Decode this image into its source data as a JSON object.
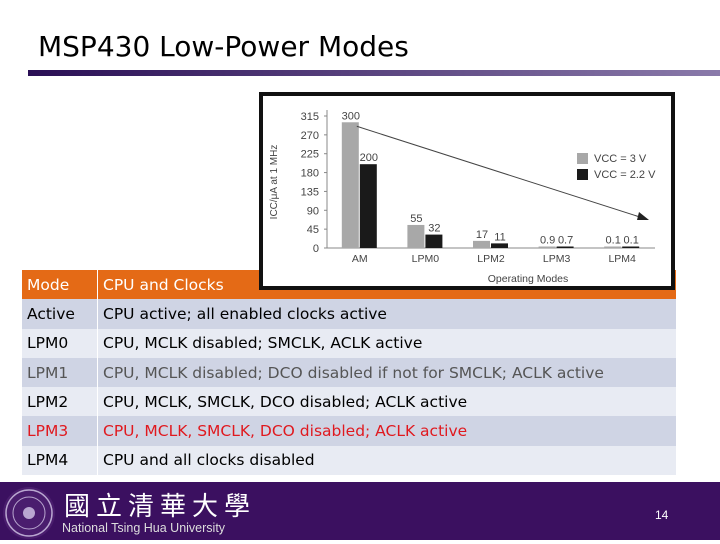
{
  "slide": {
    "title": "MSP430 Low-Power Modes",
    "page_number": "14",
    "university_cjk": "國立清華大學",
    "university_en": "National Tsing Hua University"
  },
  "table": {
    "header": {
      "mode": "Mode",
      "desc": "CPU and Clocks"
    },
    "rows": [
      {
        "mode": "Active",
        "desc": "CPU active; all enabled clocks active"
      },
      {
        "mode": "LPM0",
        "desc": "CPU, MCLK disabled; SMCLK, ACLK active"
      },
      {
        "mode": "LPM1",
        "desc": "CPU, MCLK disabled; DCO disabled if not for SMCLK; ACLK active"
      },
      {
        "mode": "LPM2",
        "desc": "CPU, MCLK, SMCLK, DCO disabled; ACLK active"
      },
      {
        "mode": "LPM3",
        "desc": "CPU, MCLK, SMCLK, DCO disabled; ACLK active"
      },
      {
        "mode": "LPM4",
        "desc": "CPU and all clocks disabled"
      }
    ],
    "colors": {
      "header": "#e46a16",
      "highlight": "#e0191f"
    }
  },
  "chart_data": {
    "type": "bar",
    "categories": [
      "AM",
      "LPM0",
      "LPM2",
      "LPM3",
      "LPM4"
    ],
    "series": [
      {
        "name": "VCC = 3 V",
        "values": [
          300,
          55,
          17,
          0.9,
          0.1
        ],
        "color": "#a8a8a8"
      },
      {
        "name": "VCC = 2.2 V",
        "values": [
          200,
          32,
          11,
          0.7,
          0.1
        ],
        "color": "#1a1a1a"
      }
    ],
    "ylabel": "ICC/μA at 1 MHz",
    "xlabel": "Operating Modes",
    "yticks": [
      0,
      45,
      90,
      135,
      180,
      225,
      270,
      315
    ],
    "ylim": [
      0,
      315
    ],
    "value_labels": [
      "300",
      "200",
      "55",
      "32",
      "17",
      "11",
      "0.9",
      "0.7",
      "0.1",
      "0.1"
    ],
    "legend_position": "right",
    "trend_line": true
  }
}
